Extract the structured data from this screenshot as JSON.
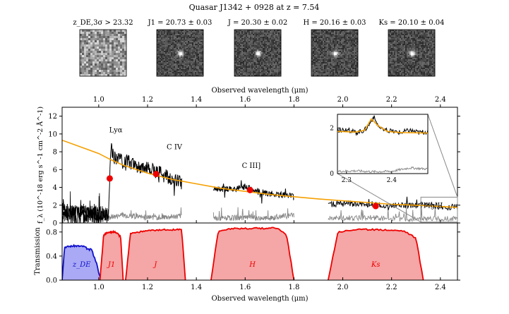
{
  "figure_title": "Quasar J1342 + 0928 at z = 7.54",
  "postage_stamps": [
    {
      "label": "z_DE,3σ > 23.32",
      "kind": "noise"
    },
    {
      "label": "J1 = 20.73 ± 0.03",
      "kind": "source"
    },
    {
      "label": "J = 20.30 ± 0.02",
      "kind": "source"
    },
    {
      "label": "H = 20.16 ± 0.03",
      "kind": "source"
    },
    {
      "label": "Ks = 20.10 ± 0.04",
      "kind": "source"
    }
  ],
  "chart_data": [
    {
      "type": "line",
      "name": "spectrum",
      "top_xlabel": "Observed wavelength (μm)",
      "ylabel": "f_λ (10^-18 erg s^-1 cm^-2 Å^-1)",
      "xlim": [
        0.85,
        2.47
      ],
      "ylim": [
        0,
        13
      ],
      "xticks": [
        "1.0",
        "1.2",
        "1.4",
        "1.6",
        "1.8",
        "2.0",
        "2.2",
        "2.4"
      ],
      "yticks": [
        "0",
        "2",
        "4",
        "6",
        "8",
        "10",
        "12"
      ],
      "line_annotations": [
        {
          "text": "Lyα",
          "x": 1.07,
          "y": 10.2
        },
        {
          "text": "C IV",
          "x": 1.31,
          "y": 8.3
        },
        {
          "text": "C III]",
          "x": 1.625,
          "y": 6.2
        },
        {
          "text": "Mg II",
          "x": 2.37,
          "y": 1.7
        }
      ],
      "series": [
        {
          "name": "spectrum flux",
          "color": "#000000",
          "segments": [
            {
              "x": [
                0.85,
                0.9,
                1.0,
                1.04,
                1.05,
                1.06,
                1.08,
                1.1,
                1.12,
                1.15,
                1.18,
                1.21,
                1.24,
                1.27,
                1.3,
                1.34
              ],
              "y": [
                1.5,
                1.3,
                1.0,
                0.9,
                9.0,
                7.5,
                7.2,
                6.8,
                6.9,
                6.4,
                6.2,
                6.0,
                5.7,
                5.3,
                5.0,
                4.4
              ]
            },
            {
              "x": [
                1.47,
                1.52,
                1.57,
                1.6,
                1.63,
                1.68,
                1.73,
                1.78,
                1.8
              ],
              "y": [
                3.9,
                3.8,
                3.9,
                4.1,
                3.7,
                3.4,
                3.2,
                3.1,
                2.9
              ]
            },
            {
              "x": [
                1.94,
                2.0,
                2.06,
                2.12,
                2.18,
                2.24,
                2.3,
                2.36,
                2.4,
                2.47
              ],
              "y": [
                2.1,
                2.2,
                2.1,
                2.1,
                1.9,
                2.0,
                1.9,
                2.1,
                1.8,
                1.8
              ]
            }
          ]
        },
        {
          "name": "noise",
          "color": "#888888",
          "segments": [
            {
              "x": [
                1.04,
                1.1,
                1.2,
                1.3,
                1.34
              ],
              "y": [
                0.6,
                0.9,
                0.6,
                0.7,
                0.8
              ]
            },
            {
              "x": [
                1.47,
                1.6,
                1.7,
                1.8
              ],
              "y": [
                0.5,
                0.6,
                0.5,
                0.9
              ]
            },
            {
              "x": [
                1.94,
                2.1,
                2.3,
                2.47
              ],
              "y": [
                0.5,
                0.6,
                0.4,
                0.5
              ]
            }
          ]
        },
        {
          "name": "continuum model",
          "color": "#F5A000",
          "x": [
            0.85,
            1.0,
            1.05,
            1.1,
            1.2,
            1.3,
            1.4,
            1.5,
            1.6,
            1.7,
            1.8,
            1.9,
            2.0,
            2.1,
            2.2,
            2.3,
            2.4,
            2.47
          ],
          "y": [
            9.3,
            7.8,
            7.1,
            6.5,
            5.6,
            4.9,
            4.4,
            3.9,
            3.55,
            3.2,
            2.95,
            2.7,
            2.5,
            2.3,
            2.1,
            2.0,
            1.85,
            1.75
          ]
        },
        {
          "name": "photometry",
          "color": "#EE0000",
          "type": "scatter",
          "x": [
            1.045,
            1.235,
            1.62,
            2.135
          ],
          "y": [
            5.0,
            5.5,
            3.7,
            1.9
          ]
        }
      ],
      "inset": {
        "xlim": [
          2.28,
          2.48
        ],
        "ylim": [
          0,
          2.6
        ],
        "xticks": [
          "2.3",
          "2.4"
        ],
        "yticks": [
          "0",
          "2"
        ],
        "series": [
          {
            "name": "flux",
            "x": [
              2.28,
              2.3,
              2.32,
              2.34,
              2.35,
              2.36,
              2.37,
              2.38,
              2.4,
              2.42,
              2.44,
              2.46,
              2.48
            ],
            "y": [
              1.9,
              1.95,
              1.8,
              1.9,
              2.15,
              2.5,
              2.1,
              1.9,
              1.85,
              1.8,
              1.9,
              1.8,
              1.85
            ]
          },
          {
            "name": "model",
            "x": [
              2.28,
              2.32,
              2.34,
              2.355,
              2.37,
              2.39,
              2.42,
              2.48
            ],
            "y": [
              1.85,
              1.82,
              1.9,
              2.4,
              2.1,
              1.85,
              1.8,
              1.78
            ]
          },
          {
            "name": "noise",
            "x": [
              2.28,
              2.32,
              2.36,
              2.4,
              2.44,
              2.48
            ],
            "y": [
              0.1,
              0.12,
              0.08,
              0.1,
              0.25,
              0.2
            ]
          }
        ]
      }
    },
    {
      "type": "area",
      "name": "filter transmission",
      "xlabel": "Observed wavelength (μm)",
      "ylabel": "Transmission",
      "xlim": [
        0.85,
        2.47
      ],
      "ylim": [
        0,
        0.95
      ],
      "xticks": [
        "1.0",
        "1.2",
        "1.4",
        "1.6",
        "1.8",
        "2.0",
        "2.2",
        "2.4"
      ],
      "yticks": [
        "0.0",
        "0.4",
        "0.8"
      ],
      "series": [
        {
          "name": "z_DE",
          "label": "z_DE",
          "fill": "#A9A9F5",
          "stroke": "#1010CC",
          "x": [
            0.85,
            0.86,
            0.9,
            0.94,
            0.96,
            0.97,
            0.98,
            0.99,
            1.0,
            1.01
          ],
          "y": [
            0.0,
            0.55,
            0.57,
            0.56,
            0.5,
            0.52,
            0.4,
            0.3,
            0.12,
            0.0
          ]
        },
        {
          "name": "J1",
          "label": "J1",
          "fill": "#F5A6A6",
          "stroke": "#EE0000",
          "x": [
            1.005,
            1.02,
            1.04,
            1.07,
            1.09,
            1.1
          ],
          "y": [
            0.0,
            0.75,
            0.8,
            0.8,
            0.72,
            0.0
          ]
        },
        {
          "name": "J",
          "label": "J",
          "fill": "#F5A6A6",
          "stroke": "#EE0000",
          "x": [
            1.11,
            1.13,
            1.2,
            1.28,
            1.34,
            1.355
          ],
          "y": [
            0.0,
            0.78,
            0.82,
            0.84,
            0.84,
            0.0
          ]
        },
        {
          "name": "H",
          "label": "H",
          "fill": "#F5A6A6",
          "stroke": "#EE0000",
          "x": [
            1.46,
            1.49,
            1.55,
            1.65,
            1.73,
            1.77,
            1.8
          ],
          "y": [
            0.0,
            0.82,
            0.86,
            0.86,
            0.87,
            0.75,
            0.0
          ]
        },
        {
          "name": "Ks",
          "label": "Ks",
          "fill": "#F5A6A6",
          "stroke": "#EE0000",
          "x": [
            1.94,
            1.98,
            2.05,
            2.15,
            2.25,
            2.3,
            2.33
          ],
          "y": [
            0.0,
            0.8,
            0.84,
            0.84,
            0.82,
            0.7,
            0.0
          ]
        }
      ]
    }
  ]
}
